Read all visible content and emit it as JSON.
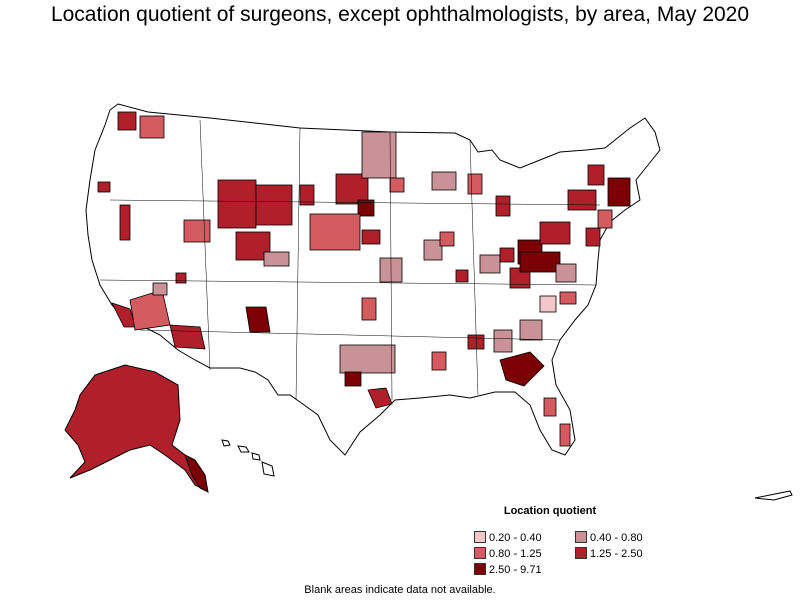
{
  "title": "Location quotient of surgeons, except ophthalmologists, by area, May 2020",
  "legend": {
    "title": "Location quotient",
    "items": [
      {
        "label": "0.20 - 0.40",
        "color": "#f4c6c9"
      },
      {
        "label": "0.40 - 0.80",
        "color": "#c99297"
      },
      {
        "label": "0.80 - 1.25",
        "color": "#d45b60"
      },
      {
        "label": "1.25 - 2.50",
        "color": "#b0202b"
      },
      {
        "label": "2.50 - 9.71",
        "color": "#7a0006"
      }
    ]
  },
  "note": "Blank areas indicate data not available.",
  "colors": {
    "border": "#000000",
    "no_data": "#ffffff"
  }
}
